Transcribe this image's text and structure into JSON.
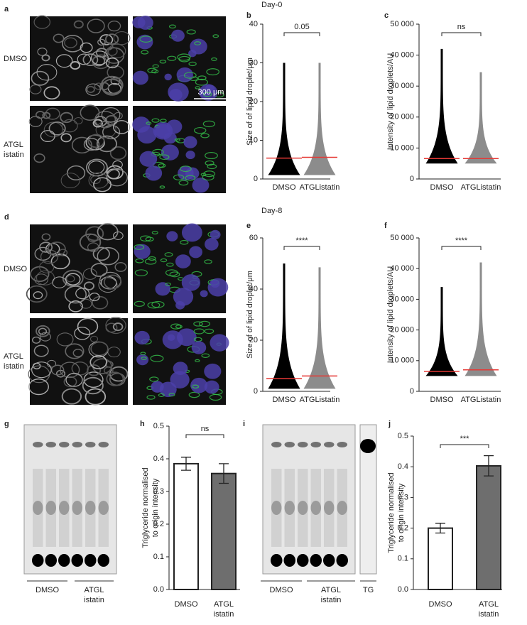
{
  "day_labels": [
    "Day-0",
    "Day-8"
  ],
  "panels": [
    {
      "label": "a",
      "rows": [
        "DMSO",
        "ATGL istatin"
      ],
      "scale_bar": "300 μm"
    },
    {
      "label": "d",
      "rows": [
        "DMSO",
        "ATGL istatin"
      ]
    },
    {
      "label": "g",
      "groups": [
        "DMSO",
        "ATGL istatin"
      ]
    },
    {
      "label": "i",
      "groups": [
        "DMSO",
        "ATGL istatin",
        "TG"
      ]
    }
  ],
  "chart_data": [
    {
      "type": "strip",
      "label": "b",
      "categories": [
        "DMSO",
        "ATGListatin"
      ],
      "ylabel": "Size of of lipid droplet/μm",
      "ylim": [
        0,
        40
      ],
      "yticks": [
        0,
        10,
        20,
        30,
        40
      ],
      "values": [
        5.4,
        5.6
      ],
      "max": [
        30,
        30
      ],
      "min": [
        1,
        1
      ],
      "colors": [
        "#000000",
        "#8c8c8c"
      ],
      "mean_color": "#e53935",
      "annotation": "0.05"
    },
    {
      "type": "strip",
      "label": "c",
      "categories": [
        "DMSO",
        "ATGListatin"
      ],
      "ylabel": "Intensity of lipid droplets/AU",
      "ylim": [
        0,
        50000
      ],
      "yticks": [
        0,
        {
          "value": 10000,
          "label": "10 000"
        },
        {
          "value": 20000,
          "label": "20 000"
        },
        {
          "value": 30000,
          "label": "30 000"
        },
        {
          "value": 40000,
          "label": "40 000"
        },
        {
          "value": 50000,
          "label": "50 000"
        }
      ],
      "values": [
        6600,
        6600
      ],
      "max": [
        42000,
        34500
      ],
      "min": [
        5000,
        5000
      ],
      "colors": [
        "#000000",
        "#8c8c8c"
      ],
      "mean_color": "#e53935",
      "annotation": "ns"
    },
    {
      "type": "strip",
      "label": "e",
      "categories": [
        "DMSO",
        "ATGListatin"
      ],
      "ylabel": "Size of of lipid droplet/μm",
      "ylim": [
        0,
        60
      ],
      "yticks": [
        0,
        20,
        40,
        60
      ],
      "values": [
        5,
        6
      ],
      "max": [
        50,
        48.5
      ],
      "min": [
        1,
        1
      ],
      "colors": [
        "#000000",
        "#8c8c8c"
      ],
      "mean_color": "#e53935",
      "annotation": "****"
    },
    {
      "type": "strip",
      "label": "f",
      "categories": [
        "DMSO",
        "ATGListatin"
      ],
      "ylabel": "Intensity of lipid droplets/AU",
      "ylim": [
        0,
        50000
      ],
      "yticks": [
        0,
        {
          "value": 10000,
          "label": "10 000"
        },
        {
          "value": 20000,
          "label": "20 000"
        },
        {
          "value": 30000,
          "label": "30 000"
        },
        {
          "value": 40000,
          "label": "40 000"
        },
        {
          "value": 50000,
          "label": "50 000"
        }
      ],
      "values": [
        6500,
        7000
      ],
      "max": [
        34000,
        42000
      ],
      "min": [
        5000,
        5000
      ],
      "colors": [
        "#000000",
        "#8c8c8c"
      ],
      "mean_color": "#e53935",
      "annotation": "****"
    },
    {
      "type": "bar",
      "label": "h",
      "categories": [
        "DMSO",
        "ATGL istatin"
      ],
      "ylabel": [
        "Triglyceride normalised",
        "to origin intensity"
      ],
      "ylim": [
        0,
        0.5
      ],
      "yticks": [
        {
          "value": 0,
          "label": "0.0"
        },
        0.1,
        0.2,
        0.3,
        0.4,
        0.5
      ],
      "values": [
        0.385,
        0.355
      ],
      "errors": [
        0.02,
        0.03
      ],
      "colors": [
        "#ffffff",
        "#6e6e6e"
      ],
      "annotation": "ns"
    },
    {
      "type": "bar",
      "label": "j",
      "categories": [
        "DMSO",
        "ATGL istatin"
      ],
      "ylabel": [
        "Triglyceride normalised",
        "to origin intensity"
      ],
      "ylim": [
        0,
        0.5
      ],
      "yticks": [
        {
          "value": 0,
          "label": "0.0"
        },
        0.1,
        0.2,
        0.3,
        0.4,
        0.5
      ],
      "values": [
        0.2,
        0.403
      ],
      "errors": [
        0.016,
        0.033
      ],
      "colors": [
        "#ffffff",
        "#6e6e6e"
      ],
      "annotation": "***"
    }
  ]
}
